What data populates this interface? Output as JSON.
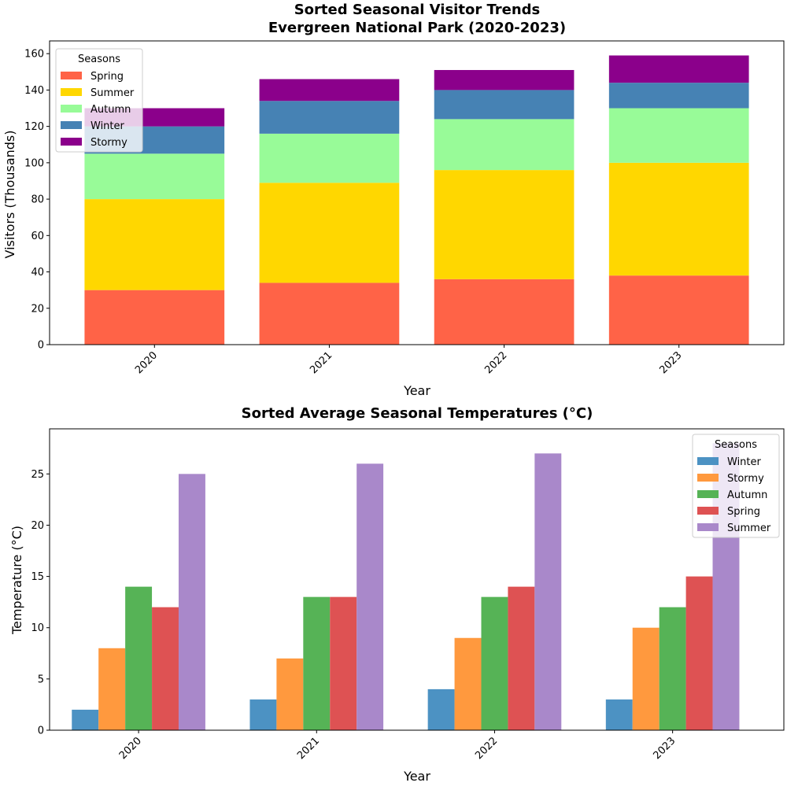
{
  "chart_data": [
    {
      "type": "bar",
      "stacked": true,
      "title_line1": "Sorted Seasonal Visitor Trends",
      "title_line2": "Evergreen National Park (2020-2023)",
      "xlabel": "Year",
      "ylabel": "Visitors (Thousands)",
      "categories": [
        "2020",
        "2021",
        "2022",
        "2023"
      ],
      "ylim": [
        0,
        167
      ],
      "yticks": [
        0,
        20,
        40,
        60,
        80,
        100,
        120,
        140,
        160
      ],
      "legend": {
        "title": "Seasons",
        "placement": "top-left"
      },
      "series": [
        {
          "name": "Spring",
          "color": "#ff6347",
          "values": [
            30,
            34,
            36,
            38
          ]
        },
        {
          "name": "Summer",
          "color": "#ffd700",
          "values": [
            50,
            55,
            60,
            62
          ]
        },
        {
          "name": "Autumn",
          "color": "#98fb98",
          "values": [
            25,
            27,
            28,
            30
          ]
        },
        {
          "name": "Winter",
          "color": "#4682b4",
          "values": [
            15,
            18,
            16,
            14
          ]
        },
        {
          "name": "Stormy",
          "color": "#8b008b",
          "values": [
            10,
            12,
            11,
            15
          ]
        }
      ]
    },
    {
      "type": "bar",
      "stacked": false,
      "title": "Sorted Average Seasonal Temperatures (°C)",
      "xlabel": "Year",
      "ylabel": "Temperature (°C)",
      "categories": [
        "2020",
        "2021",
        "2022",
        "2023"
      ],
      "ylim": [
        0,
        29.4
      ],
      "yticks": [
        0,
        5,
        10,
        15,
        20,
        25
      ],
      "legend": {
        "title": "Seasons",
        "placement": "top-right"
      },
      "series": [
        {
          "name": "Winter",
          "color": "#4c92c3",
          "values": [
            2,
            3,
            4,
            3
          ]
        },
        {
          "name": "Stormy",
          "color": "#ff993e",
          "values": [
            8,
            7,
            9,
            10
          ]
        },
        {
          "name": "Autumn",
          "color": "#56b356",
          "values": [
            14,
            13,
            13,
            12
          ]
        },
        {
          "name": "Spring",
          "color": "#de5253",
          "values": [
            12,
            13,
            14,
            15
          ]
        },
        {
          "name": "Summer",
          "color": "#a988ca",
          "values": [
            25,
            26,
            27,
            28
          ]
        }
      ]
    }
  ]
}
